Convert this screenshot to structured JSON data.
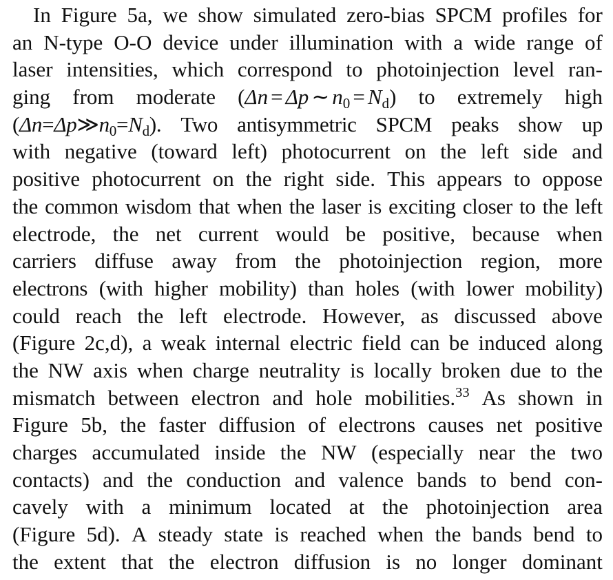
{
  "paragraph": {
    "lines": [
      [
        "In",
        "Figure",
        "5a,",
        "we",
        "show",
        "simulated",
        "zero-bias",
        "SPCM",
        "profiles",
        "for"
      ],
      [
        "an",
        "N-type",
        "O-O",
        "device",
        "under",
        "illumination",
        "with",
        "a",
        "wide",
        "range",
        "of"
      ],
      [
        "laser",
        "intensities,",
        "which",
        "correspond",
        "to",
        "photoinjection",
        "level",
        "ran-"
      ],
      [
        "ging",
        "from",
        "moderate"
      ],
      [
        "to",
        "extremely",
        "high"
      ],
      [
        "Two",
        "antisymmetric",
        "SPCM",
        "peaks",
        "show",
        "up"
      ],
      [
        "with",
        "negative",
        "(toward",
        "left)",
        "photocurrent",
        "on",
        "the",
        "left",
        "side",
        "and"
      ],
      [
        "positive",
        "photocurrent",
        "on",
        "the",
        "right",
        "side.",
        "This",
        "appears",
        "to",
        "oppose"
      ],
      [
        "the",
        "common",
        "wisdom",
        "that",
        "when",
        "the",
        "laser",
        "is",
        "exciting",
        "closer",
        "to",
        "the",
        "left"
      ],
      [
        "electrode,",
        "the",
        "net",
        "current",
        "would",
        "be",
        "positive,",
        "because",
        "when"
      ],
      [
        "carriers",
        "diffuse",
        "away",
        "from",
        "the",
        "photoinjection",
        "region,",
        "more"
      ],
      [
        "electrons",
        "(with",
        "higher",
        "mobility)",
        "than",
        "holes",
        "(with",
        "lower",
        "mobility)"
      ],
      [
        "could",
        "reach",
        "the",
        "left",
        "electrode.",
        "However,",
        "as",
        "discussed",
        "above"
      ],
      [
        "(Figure",
        "2c,d),",
        "a",
        "weak",
        "internal",
        "electric",
        "field",
        "can",
        "be",
        "induced",
        "along"
      ],
      [
        "the",
        "NW",
        "axis",
        "when",
        "charge",
        "neutrality",
        "is",
        "locally",
        "broken",
        "due",
        "to",
        "the"
      ],
      [
        "mismatch",
        "between",
        "electron",
        "and",
        "hole",
        "mobilities."
      ],
      [
        "As",
        "shown",
        "in"
      ],
      [
        "Figure",
        "5b,",
        "the",
        "faster",
        "diffusion",
        "of",
        "electrons",
        "causes",
        "net",
        "positive"
      ],
      [
        "charges",
        "accumulated",
        "inside",
        "the",
        "NW",
        "(especially",
        "near",
        "the",
        "two"
      ],
      [
        "contacts)",
        "and",
        "the",
        "conduction",
        "and",
        "valence",
        "bands",
        "to",
        "bend",
        "con-"
      ],
      [
        "cavely",
        "with",
        "a",
        "minimum",
        "located",
        "at",
        "the",
        "photoinjection",
        "area"
      ],
      [
        "(Figure",
        "5d).",
        "A",
        "steady",
        "state",
        "is",
        "reached",
        "when",
        "the",
        "bands",
        "bend",
        "to"
      ],
      [
        "the",
        "extent",
        "that",
        "the",
        "electron",
        "diffusion",
        "is",
        "no",
        "longer",
        "dominant"
      ]
    ],
    "math": {
      "delta_n": "Δn",
      "delta_p": "Δp",
      "n": "n",
      "zero": "0",
      "N": "N",
      "d": "d",
      "equals": "=",
      "sim": "∼",
      "gg": "≫",
      "open_paren": "(",
      "close_paren": ")",
      "close_paren_period": ").",
      "ref": "33"
    }
  }
}
